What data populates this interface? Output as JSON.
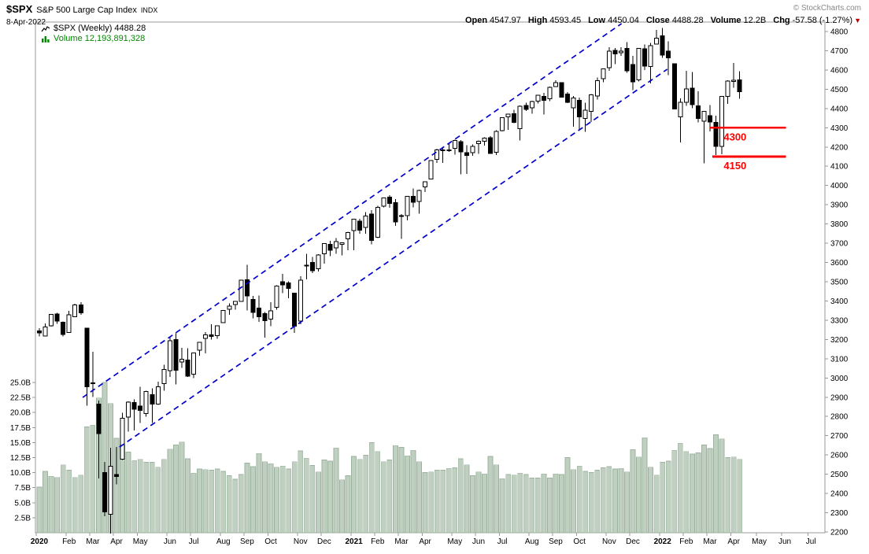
{
  "header": {
    "symbol": "$SPX",
    "name": "S&P 500 Large Cap Index",
    "exchange": "INDX",
    "date": "8-Apr-2022",
    "copyright": "© StockCharts.com",
    "quote": {
      "open_label": "Open",
      "open": "4547.97",
      "high_label": "High",
      "high": "4593.45",
      "low_label": "Low",
      "low": "4450.04",
      "close_label": "Close",
      "close": "4488.28",
      "volume_label": "Volume",
      "volume": "12.2B",
      "chg_label": "Chg",
      "chg": "-57.58 (-1.27%)",
      "direction_icon": "▼"
    }
  },
  "legend": {
    "series_label": "$SPX (Weekly) 4488.28",
    "volume_label": "Volume 12,193,891,328"
  },
  "colors": {
    "channel_blue": "#0000cc",
    "level_red": "#ff0000",
    "candle_up_fill": "#ffffff",
    "candle_down_fill": "#000000",
    "candle_stroke": "#000000",
    "volume_fill": "#bfcfc0",
    "volume_stroke": "#9db29e",
    "axis_text": "#000000",
    "border": "#999999",
    "volume_text_green": "#008800"
  },
  "chart_data": {
    "type": "candlestick",
    "symbol": "$SPX",
    "period": "Weekly",
    "last_close": 4488.28,
    "y_axis": {
      "side": "right",
      "min": 2200,
      "max": 4800,
      "step": 100
    },
    "volume_axis": {
      "side": "left",
      "unit": "B",
      "min": 2.5,
      "max": 25,
      "step": 2.5,
      "values": [
        2.5,
        5,
        7.5,
        10,
        12.5,
        15,
        17.5,
        20,
        22.5,
        25
      ],
      "labels": [
        "2.5B",
        "5.0B",
        "7.5B",
        "10.0B",
        "12.5B",
        "15.0B",
        "17.5B",
        "20.0B",
        "22.5B",
        "25.0B"
      ]
    },
    "x_axis": {
      "months_columns": [
        "label",
        "week_index",
        "bold"
      ],
      "months": [
        [
          "2020",
          0,
          true
        ],
        [
          "Feb",
          5,
          false
        ],
        [
          "Mar",
          9,
          false
        ],
        [
          "Apr",
          13,
          false
        ],
        [
          "May",
          17,
          false
        ],
        [
          "Jun",
          22,
          false
        ],
        [
          "Jul",
          26,
          false
        ],
        [
          "Aug",
          31,
          false
        ],
        [
          "Sep",
          35,
          false
        ],
        [
          "Oct",
          39,
          false
        ],
        [
          "Nov",
          44,
          false
        ],
        [
          "Dec",
          48,
          false
        ],
        [
          "2021",
          53,
          true
        ],
        [
          "Feb",
          57,
          false
        ],
        [
          "Mar",
          61,
          false
        ],
        [
          "Apr",
          65,
          false
        ],
        [
          "May",
          70,
          false
        ],
        [
          "Jun",
          74,
          false
        ],
        [
          "Jul",
          78,
          false
        ],
        [
          "Aug",
          83,
          false
        ],
        [
          "Sep",
          87,
          false
        ],
        [
          "Oct",
          91,
          false
        ],
        [
          "Nov",
          96,
          false
        ],
        [
          "Dec",
          100,
          false
        ],
        [
          "2022",
          105,
          true
        ],
        [
          "Feb",
          109,
          false
        ],
        [
          "Mar",
          113,
          false
        ],
        [
          "Apr",
          117,
          false
        ],
        [
          "May",
          121.3,
          false
        ],
        [
          "Jun",
          125.6,
          false
        ],
        [
          "Jul",
          130,
          false
        ]
      ]
    },
    "weeks_columns": [
      "open",
      "high",
      "low",
      "close",
      "volume_billions"
    ],
    "weeks": [
      [
        3245,
        3258,
        3215,
        3235,
        7.6
      ],
      [
        3218,
        3283,
        3215,
        3265,
        10.2
      ],
      [
        3271,
        3330,
        3268,
        3330,
        9.4
      ],
      [
        3333,
        3338,
        3282,
        3295,
        9.2
      ],
      [
        3289,
        3293,
        3215,
        3226,
        11.3
      ],
      [
        3236,
        3348,
        3236,
        3328,
        10.4
      ],
      [
        3318,
        3385,
        3318,
        3380,
        9.2
      ],
      [
        3380,
        3394,
        3328,
        3338,
        9.6
      ],
      [
        3258,
        3260,
        2856,
        2954,
        17.6
      ],
      [
        2974,
        3137,
        2902,
        2972,
        17.9
      ],
      [
        2864,
        2883,
        2479,
        2711,
        22.4
      ],
      [
        2509,
        2563,
        2281,
        2305,
        25.0
      ],
      [
        2291,
        2637,
        2192,
        2541,
        21.5
      ],
      [
        2498,
        2641,
        2447,
        2489,
        15.7
      ],
      [
        2578,
        2819,
        2575,
        2790,
        14.7
      ],
      [
        2796,
        2879,
        2721,
        2875,
        13.4
      ],
      [
        2873,
        2888,
        2727,
        2837,
        12.0
      ],
      [
        2855,
        2955,
        2767,
        2831,
        12.2
      ],
      [
        2816,
        2933,
        2798,
        2930,
        11.7
      ],
      [
        2914,
        2946,
        2767,
        2864,
        11.7
      ],
      [
        2864,
        2980,
        2861,
        2955,
        10.9
      ],
      [
        2970,
        3069,
        2934,
        3044,
        12.2
      ],
      [
        3039,
        3212,
        3005,
        3194,
        13.9
      ],
      [
        3200,
        3233,
        2966,
        3041,
        14.6
      ],
      [
        3083,
        3156,
        3053,
        3098,
        15.1
      ],
      [
        3094,
        3155,
        3005,
        3009,
        12.3
      ],
      [
        3019,
        3131,
        3000,
        3130,
        9.9
      ],
      [
        3144,
        3187,
        3116,
        3185,
        10.6
      ],
      [
        3205,
        3238,
        3128,
        3225,
        10.5
      ],
      [
        3224,
        3280,
        3200,
        3216,
        10.4
      ],
      [
        3220,
        3272,
        3204,
        3271,
        10.6
      ],
      [
        3288,
        3353,
        3285,
        3351,
        10.2
      ],
      [
        3356,
        3388,
        3329,
        3373,
        9.5
      ],
      [
        3381,
        3400,
        3355,
        3397,
        8.9
      ],
      [
        3398,
        3509,
        3397,
        3508,
        9.7
      ],
      [
        3510,
        3588,
        3350,
        3427,
        11.6
      ],
      [
        3409,
        3426,
        3310,
        3341,
        11.0
      ],
      [
        3364,
        3429,
        3292,
        3319,
        13.2
      ],
      [
        3334,
        3343,
        3209,
        3298,
        11.8
      ],
      [
        3305,
        3394,
        3269,
        3348,
        11.5
      ],
      [
        3367,
        3482,
        3355,
        3477,
        10.9
      ],
      [
        3500,
        3541,
        3441,
        3484,
        11.1
      ],
      [
        3494,
        3502,
        3415,
        3465,
        10.6
      ],
      [
        3441,
        3441,
        3234,
        3270,
        11.8
      ],
      [
        3296,
        3529,
        3280,
        3509,
        13.6
      ],
      [
        3583,
        3646,
        3512,
        3585,
        12.4
      ],
      [
        3600,
        3629,
        3544,
        3558,
        11.2
      ],
      [
        3567,
        3644,
        3553,
        3638,
        10.1
      ],
      [
        3646,
        3699,
        3594,
        3699,
        12.1
      ],
      [
        3695,
        3712,
        3633,
        3663,
        11.9
      ],
      [
        3675,
        3727,
        3646,
        3709,
        14.1
      ],
      [
        3694,
        3704,
        3636,
        3703,
        8.8
      ],
      [
        3723,
        3760,
        3663,
        3756,
        9.5
      ],
      [
        3765,
        3827,
        3663,
        3825,
        12.7
      ],
      [
        3815,
        3827,
        3750,
        3768,
        12.2
      ],
      [
        3782,
        3861,
        3750,
        3841,
        12.9
      ],
      [
        3852,
        3871,
        3694,
        3714,
        15.0
      ],
      [
        3731,
        3895,
        3726,
        3887,
        13.5
      ],
      [
        3893,
        3937,
        3886,
        3935,
        11.8
      ],
      [
        3940,
        3950,
        3885,
        3907,
        12.1
      ],
      [
        3910,
        3929,
        3790,
        3811,
        14.5
      ],
      [
        3843,
        3852,
        3723,
        3842,
        14.2
      ],
      [
        3844,
        3945,
        3819,
        3943,
        12.8
      ],
      [
        3943,
        3984,
        3887,
        3913,
        13.7
      ],
      [
        3917,
        3978,
        3854,
        3975,
        11.8
      ],
      [
        3993,
        4021,
        3967,
        4020,
        10.0
      ],
      [
        4034,
        4129,
        4034,
        4129,
        10.1
      ],
      [
        4135,
        4191,
        4118,
        4185,
        10.4
      ],
      [
        4185,
        4194,
        4118,
        4180,
        10.4
      ],
      [
        4185,
        4219,
        4175,
        4181,
        10.7
      ],
      [
        4192,
        4238,
        4161,
        4233,
        10.8
      ],
      [
        4228,
        4236,
        4057,
        4174,
        12.3
      ],
      [
        4170,
        4210,
        4061,
        4156,
        11.3
      ],
      [
        4170,
        4213,
        4154,
        4204,
        9.5
      ],
      [
        4217,
        4233,
        4164,
        4230,
        10.1
      ],
      [
        4229,
        4250,
        4207,
        4247,
        9.8
      ],
      [
        4248,
        4257,
        4164,
        4166,
        12.7
      ],
      [
        4173,
        4286,
        4158,
        4281,
        11.3
      ],
      [
        4285,
        4355,
        4280,
        4352,
        9.0
      ],
      [
        4356,
        4372,
        4289,
        4370,
        9.7
      ],
      [
        4372,
        4394,
        4323,
        4327,
        9.6
      ],
      [
        4296,
        4415,
        4233,
        4412,
        9.9
      ],
      [
        4416,
        4430,
        4387,
        4395,
        9.7
      ],
      [
        4403,
        4441,
        4373,
        4437,
        9.1
      ],
      [
        4438,
        4468,
        4425,
        4468,
        9.1
      ],
      [
        4462,
        4482,
        4368,
        4442,
        9.8
      ],
      [
        4450,
        4513,
        4438,
        4509,
        9.1
      ],
      [
        4514,
        4546,
        4514,
        4535,
        9.8
      ],
      [
        4535,
        4535,
        4458,
        4459,
        9.7
      ],
      [
        4475,
        4486,
        4428,
        4433,
        12.5
      ],
      [
        4403,
        4465,
        4306,
        4455,
        10.5
      ],
      [
        4442,
        4457,
        4289,
        4357,
        11.1
      ],
      [
        4349,
        4430,
        4279,
        4391,
        10.2
      ],
      [
        4385,
        4476,
        4330,
        4471,
        10.0
      ],
      [
        4464,
        4560,
        4447,
        4545,
        10.4
      ],
      [
        4554,
        4608,
        4537,
        4605,
        10.8
      ],
      [
        4611,
        4719,
        4595,
        4698,
        11.0
      ],
      [
        4701,
        4715,
        4631,
        4683,
        10.6
      ],
      [
        4689,
        4718,
        4673,
        4698,
        10.7
      ],
      [
        4712,
        4744,
        4585,
        4595,
        10.1
      ],
      [
        4629,
        4673,
        4495,
        4538,
        13.8
      ],
      [
        4548,
        4714,
        4541,
        4712,
        12.6
      ],
      [
        4710,
        4732,
        4600,
        4621,
        15.8
      ],
      [
        4619,
        4741,
        4531,
        4726,
        10.9
      ],
      [
        4734,
        4809,
        4734,
        4766,
        9.6
      ],
      [
        4778,
        4819,
        4663,
        4677,
        11.7
      ],
      [
        4698,
        4749,
        4573,
        4663,
        11.9
      ],
      [
        4632,
        4632,
        4395,
        4398,
        13.7
      ],
      [
        4356,
        4453,
        4223,
        4432,
        14.9
      ],
      [
        4432,
        4595,
        4414,
        4501,
        13.5
      ],
      [
        4506,
        4590,
        4401,
        4419,
        13.1
      ],
      [
        4413,
        4490,
        4327,
        4349,
        13.3
      ],
      [
        4333,
        4385,
        4115,
        4385,
        14.6
      ],
      [
        4363,
        4417,
        4280,
        4329,
        14.0
      ],
      [
        4327,
        4363,
        4158,
        4204,
        16.3
      ],
      [
        4203,
        4465,
        4162,
        4463,
        15.6
      ],
      [
        4462,
        4546,
        4424,
        4543,
        12.5
      ],
      [
        4541,
        4637,
        4508,
        4546,
        12.6
      ],
      [
        4548,
        4593,
        4450,
        4488.28,
        12.2
      ]
    ],
    "annotations": {
      "channel": {
        "style": "dashed",
        "color": "#0000cc",
        "upper_endpoints_week_price": [
          [
            7.3,
            2899
          ],
          [
            98.1,
            4841
          ]
        ],
        "lower_endpoints_week_price": [
          [
            13.5,
            2641
          ],
          [
            105.8,
            4604
          ]
        ]
      },
      "levels": [
        {
          "price": 4300,
          "label": "4300",
          "from_week": 113.0,
          "to_week": 125.8,
          "label_week": 115.3,
          "color": "#ff0000"
        },
        {
          "price": 4150,
          "label": "4150",
          "from_week": 113.4,
          "to_week": 125.8,
          "label_week": 115.3,
          "color": "#ff0000"
        }
      ]
    }
  }
}
